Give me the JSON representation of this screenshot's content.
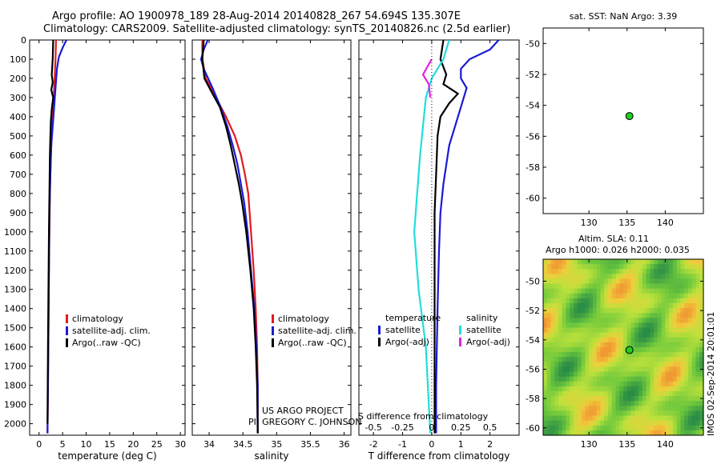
{
  "header": {
    "line1": "Argo profile: AO 1900978_189 28-Aug-2014 20140828_267 54.694S 135.307E",
    "line2": "Climatology: CARS2009. Satellite-adjusted climatology: synTS_20140826.nc (2.5d earlier)"
  },
  "credit": {
    "project": "US ARGO PROJECT",
    "pi": "PI: GREGORY C. JOHNSON"
  },
  "stamp": "IMOS 02-Sep-2014 20:01:01",
  "colors": {
    "climatology": "#e31a1c",
    "satellite": "#1a1ad6",
    "argo": "#000000",
    "sat_salinity": "#22dddd",
    "argo_salinity": "#e020e0",
    "map_bg_low": "#1f7f3f",
    "map_bg_mid": "#b0dd30",
    "map_hi": "#f0a030",
    "marker": "#22cc22"
  },
  "chart_data": [
    {
      "type": "line",
      "panel": "temperature",
      "xlabel": "temperature (deg C)",
      "ylabel": "",
      "xlim": [
        -2,
        31
      ],
      "ylim": [
        2060,
        0
      ],
      "xticks": [
        0,
        5,
        10,
        15,
        20,
        25,
        30
      ],
      "yticks": [
        0,
        100,
        200,
        300,
        400,
        500,
        600,
        700,
        800,
        900,
        1000,
        1100,
        1200,
        1300,
        1400,
        1500,
        1600,
        1700,
        1800,
        1900,
        2000
      ],
      "legend": [
        "climatology",
        "satellite-adj. clim.",
        "Argo(..raw -QC)"
      ],
      "series": [
        {
          "name": "climatology",
          "color_key": "climatology",
          "points": [
            [
              3.6,
              0
            ],
            [
              3.5,
              100
            ],
            [
              3.3,
              200
            ],
            [
              3.1,
              300
            ],
            [
              2.9,
              400
            ],
            [
              2.7,
              500
            ],
            [
              2.5,
              600
            ],
            [
              2.4,
              700
            ],
            [
              2.3,
              800
            ],
            [
              2.2,
              1000
            ],
            [
              2.1,
              1200
            ],
            [
              2.0,
              1500
            ],
            [
              1.9,
              1800
            ],
            [
              1.8,
              2050
            ]
          ]
        },
        {
          "name": "satellite-adj. clim.",
          "color_key": "satellite",
          "points": [
            [
              5.8,
              0
            ],
            [
              5.0,
              40
            ],
            [
              4.2,
              90
            ],
            [
              3.8,
              150
            ],
            [
              3.5,
              250
            ],
            [
              3.2,
              350
            ],
            [
              2.9,
              450
            ],
            [
              2.6,
              550
            ],
            [
              2.4,
              700
            ],
            [
              2.2,
              900
            ],
            [
              2.1,
              1200
            ],
            [
              2.0,
              1500
            ],
            [
              1.9,
              1800
            ],
            [
              1.8,
              2050
            ]
          ]
        },
        {
          "name": "Argo(..raw -QC)",
          "color_key": "argo",
          "points": [
            [
              3.0,
              0
            ],
            [
              2.9,
              100
            ],
            [
              2.7,
              180
            ],
            [
              2.9,
              220
            ],
            [
              2.6,
              260
            ],
            [
              3.0,
              300
            ],
            [
              2.7,
              360
            ],
            [
              2.5,
              420
            ],
            [
              2.4,
              500
            ],
            [
              2.3,
              600
            ],
            [
              2.2,
              800
            ],
            [
              2.1,
              1000
            ],
            [
              2.0,
              1300
            ],
            [
              1.9,
              1600
            ],
            [
              1.8,
              2000
            ]
          ]
        }
      ]
    },
    {
      "type": "line",
      "panel": "salinity",
      "xlabel": "salinity",
      "ylabel": "",
      "xlim": [
        33.75,
        36.1
      ],
      "ylim": [
        2060,
        0
      ],
      "xticks": [
        34,
        34.5,
        35,
        35.5,
        36
      ],
      "legend": [
        "climatology",
        "satellite-adj. clim.",
        "Argo(..raw -QC)"
      ],
      "series": [
        {
          "name": "climatology",
          "color_key": "climatology",
          "points": [
            [
              33.9,
              0
            ],
            [
              33.9,
              100
            ],
            [
              33.95,
              200
            ],
            [
              34.1,
              300
            ],
            [
              34.25,
              400
            ],
            [
              34.38,
              500
            ],
            [
              34.47,
              600
            ],
            [
              34.53,
              700
            ],
            [
              34.58,
              800
            ],
            [
              34.62,
              1000
            ],
            [
              34.66,
              1200
            ],
            [
              34.69,
              1400
            ],
            [
              34.71,
              1600
            ],
            [
              34.72,
              1800
            ],
            [
              34.72,
              2050
            ]
          ]
        },
        {
          "name": "satellite-adj. clim.",
          "color_key": "satellite",
          "points": [
            [
              33.98,
              0
            ],
            [
              33.92,
              50
            ],
            [
              33.88,
              100
            ],
            [
              33.92,
              150
            ],
            [
              34.05,
              250
            ],
            [
              34.17,
              350
            ],
            [
              34.27,
              450
            ],
            [
              34.35,
              550
            ],
            [
              34.42,
              650
            ],
            [
              34.47,
              750
            ],
            [
              34.52,
              850
            ],
            [
              34.57,
              1000
            ],
            [
              34.62,
              1200
            ],
            [
              34.67,
              1400
            ],
            [
              34.7,
              1600
            ],
            [
              34.72,
              1800
            ],
            [
              34.72,
              2050
            ]
          ]
        },
        {
          "name": "Argo(..raw -QC)",
          "color_key": "argo",
          "points": [
            [
              33.92,
              0
            ],
            [
              33.9,
              100
            ],
            [
              33.93,
              200
            ],
            [
              34.05,
              280
            ],
            [
              34.16,
              350
            ],
            [
              34.25,
              450
            ],
            [
              34.32,
              550
            ],
            [
              34.38,
              650
            ],
            [
              34.44,
              750
            ],
            [
              34.49,
              850
            ],
            [
              34.55,
              1000
            ],
            [
              34.61,
              1200
            ],
            [
              34.66,
              1400
            ],
            [
              34.69,
              1600
            ],
            [
              34.71,
              1800
            ],
            [
              34.72,
              2050
            ]
          ]
        }
      ]
    },
    {
      "type": "line",
      "panel": "difference",
      "xlabel": "T difference from climatology",
      "xlabel2": "S difference from climatology",
      "xlim": [
        -2.5,
        3.0
      ],
      "ylim": [
        2060,
        0
      ],
      "xticks": [
        -2,
        -1,
        0,
        1,
        2
      ],
      "xticks2": [
        -0.5,
        -0.25,
        0,
        0.25,
        0.5
      ],
      "legend_headers": [
        "temperature",
        "salinity"
      ],
      "legend": [
        "satellite",
        "Argo(-adj)",
        "satellite",
        "Argo(-adj)"
      ],
      "series": [
        {
          "name": "T satellite",
          "color_key": "satellite",
          "points": [
            [
              2.3,
              0
            ],
            [
              2.0,
              50
            ],
            [
              1.3,
              100
            ],
            [
              1.0,
              150
            ],
            [
              1.0,
              200
            ],
            [
              1.2,
              250
            ],
            [
              1.0,
              350
            ],
            [
              0.8,
              450
            ],
            [
              0.6,
              550
            ],
            [
              0.5,
              650
            ],
            [
              0.4,
              750
            ],
            [
              0.3,
              900
            ],
            [
              0.25,
              1100
            ],
            [
              0.2,
              1400
            ],
            [
              0.15,
              1800
            ],
            [
              0.15,
              2050
            ]
          ]
        },
        {
          "name": "T Argo(-adj)",
          "color_key": "argo",
          "points": [
            [
              0.4,
              0
            ],
            [
              0.3,
              100
            ],
            [
              0.5,
              180
            ],
            [
              0.4,
              230
            ],
            [
              0.9,
              280
            ],
            [
              0.6,
              330
            ],
            [
              0.3,
              400
            ],
            [
              0.2,
              500
            ],
            [
              0.15,
              700
            ],
            [
              0.1,
              900
            ],
            [
              0.1,
              1200
            ],
            [
              0.1,
              1600
            ],
            [
              0.1,
              2050
            ]
          ]
        },
        {
          "name": "S satellite",
          "color_key": "sat_salinity",
          "points": [
            [
              0.6,
              0
            ],
            [
              0.4,
              100
            ],
            [
              0.0,
              200
            ],
            [
              -0.2,
              300
            ],
            [
              -0.3,
              450
            ],
            [
              -0.4,
              600
            ],
            [
              -0.5,
              800
            ],
            [
              -0.6,
              1000
            ],
            [
              -0.45,
              1300
            ],
            [
              -0.2,
              1600
            ],
            [
              -0.05,
              2050
            ]
          ]
        },
        {
          "name": "S Argo(-adj)",
          "color_key": "argo_salinity",
          "points": [
            [
              0.0,
              100
            ],
            [
              -0.3,
              180
            ],
            [
              -0.1,
              230
            ],
            [
              -0.05,
              300
            ]
          ]
        }
      ]
    },
    {
      "type": "scatter",
      "panel": "sst-map",
      "title": "sat. SST: NaN Argo: 3.39",
      "xlim": [
        124,
        145
      ],
      "ylim": [
        -61,
        -49
      ],
      "xticks": [
        130,
        135,
        140
      ],
      "yticks": [
        -50,
        -52,
        -54,
        -56,
        -58,
        -60
      ],
      "points": [
        [
          135.307,
          -54.694
        ]
      ]
    },
    {
      "type": "heatmap",
      "panel": "sla-map",
      "title": "Altim. SLA: 0.11",
      "subtitle": "Argo h1000: 0.026 h2000: 0.035",
      "xlim": [
        124,
        145
      ],
      "ylim": [
        -60.5,
        -48.5
      ],
      "xticks": [
        130,
        135,
        140
      ],
      "yticks": [
        -50,
        -52,
        -54,
        -56,
        -58,
        -60
      ],
      "points": [
        [
          135.307,
          -54.694
        ]
      ]
    }
  ]
}
